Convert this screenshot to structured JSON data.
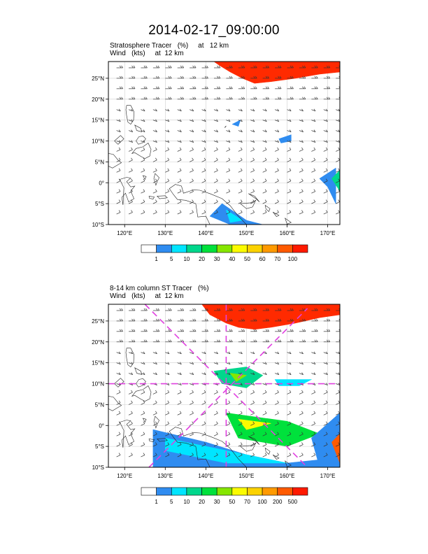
{
  "page": {
    "title": "2014-02-17_09:00:00"
  },
  "chart_data": [
    {
      "type": "heatmap",
      "title_lines": [
        "Stratosphere Tracer   (%)     at   12 km",
        "Wind   (kts)     at  12 km"
      ],
      "xlim": [
        116,
        173
      ],
      "ylim": [
        -10,
        29
      ],
      "x_ticks": [
        120,
        130,
        140,
        150,
        160,
        170
      ],
      "x_tick_labels": [
        "120°E",
        "130°E",
        "140°E",
        "150°E",
        "160°E",
        "170°E"
      ],
      "y_ticks": [
        25,
        20,
        15,
        10,
        5,
        0,
        -5,
        -10
      ],
      "y_tick_labels": [
        "25°N",
        "20°N",
        "15°N",
        "10°N",
        "5°N",
        "0°",
        "5°S",
        "10°S"
      ],
      "colorbar": {
        "labels": [
          "1",
          "5",
          "10",
          "20",
          "30",
          "40",
          "50",
          "60",
          "70",
          "100"
        ],
        "colors": [
          "#ffffff",
          "#2f8cf0",
          "#00e5ff",
          "#00d78c",
          "#00e13c",
          "#86e600",
          "#fbfb00",
          "#fbd200",
          "#ff9a00",
          "#ff5a00",
          "#ff1a00"
        ]
      },
      "regions": [
        {
          "color": "#ff2a00",
          "points": [
            [
              142,
              29
            ],
            [
              173,
              29
            ],
            [
              173,
              26.5
            ],
            [
              168,
              26
            ],
            [
              162,
              25
            ],
            [
              156,
              24.2
            ],
            [
              152,
              23.8
            ],
            [
              149,
              25
            ],
            [
              146,
              26.5
            ],
            [
              143.5,
              28
            ]
          ]
        },
        {
          "color": "#2f8cf0",
          "points": [
            [
              144,
              -5
            ],
            [
              150,
              -9
            ],
            [
              154,
              -10
            ],
            [
              146,
              -10
            ],
            [
              141,
              -8
            ]
          ]
        },
        {
          "color": "#00e5ff",
          "points": [
            [
              145,
              -6.5
            ],
            [
              149,
              -9
            ],
            [
              146,
              -9.5
            ]
          ]
        },
        {
          "color": "#2f8cf0",
          "points": [
            [
              168,
              1
            ],
            [
              172,
              3.5
            ],
            [
              172,
              -5
            ],
            [
              170,
              -1
            ]
          ]
        },
        {
          "color": "#00d78c",
          "points": [
            [
              171,
              1
            ],
            [
              173,
              3
            ],
            [
              173,
              -2
            ]
          ]
        },
        {
          "color": "#2f8cf0",
          "points": [
            [
              158,
              10.5
            ],
            [
              161,
              11.5
            ],
            [
              161,
              10
            ],
            [
              158.5,
              9.5
            ]
          ]
        },
        {
          "color": "#2f8cf0",
          "points": [
            [
              146.5,
              14
            ],
            [
              148.5,
              15
            ],
            [
              148,
              13.5
            ]
          ]
        }
      ],
      "lines": []
    },
    {
      "type": "heatmap",
      "title_lines": [
        "8-14 km column ST Tracer   (%)",
        "Wind   (kts)     at  12 km"
      ],
      "xlim": [
        116,
        173
      ],
      "ylim": [
        -10,
        29
      ],
      "x_ticks": [
        120,
        130,
        140,
        150,
        160,
        170
      ],
      "x_tick_labels": [
        "120°E",
        "130°E",
        "140°E",
        "150°E",
        "160°E",
        "170°E"
      ],
      "y_ticks": [
        25,
        20,
        15,
        10,
        5,
        0,
        -5,
        -10
      ],
      "y_tick_labels": [
        "25°N",
        "20°N",
        "15°N",
        "10°N",
        "5°N",
        "0°",
        "5°S",
        "10°S"
      ],
      "colorbar": {
        "labels": [
          "1",
          "5",
          "10",
          "20",
          "30",
          "50",
          "70",
          "100",
          "200",
          "500"
        ],
        "colors": [
          "#ffffff",
          "#2f8cf0",
          "#00e5ff",
          "#00d78c",
          "#00e13c",
          "#86e600",
          "#fbfb00",
          "#fbd200",
          "#ff9a00",
          "#ff5a00",
          "#ff1a00"
        ]
      },
      "regions": [
        {
          "color": "#ff2a00",
          "points": [
            [
              139,
              29
            ],
            [
              173,
              29
            ],
            [
              173,
              26.5
            ],
            [
              168,
              25.8
            ],
            [
              162,
              24.5
            ],
            [
              156,
              23.5
            ],
            [
              152,
              23
            ],
            [
              148,
              23.5
            ],
            [
              145,
              24.5
            ],
            [
              141,
              26.5
            ]
          ]
        },
        {
          "color": "#2f8cf0",
          "points": [
            [
              127,
              -1
            ],
            [
              140,
              -4
            ],
            [
              150,
              -7
            ],
            [
              160,
              -9
            ],
            [
              170,
              -8
            ],
            [
              173,
              -10
            ],
            [
              127,
              -10
            ]
          ]
        },
        {
          "color": "#00e5ff",
          "points": [
            [
              130,
              -3
            ],
            [
              145,
              -6
            ],
            [
              160,
              -9
            ],
            [
              145,
              -9
            ],
            [
              130,
              -6
            ]
          ]
        },
        {
          "color": "#00e13c",
          "points": [
            [
              145,
              3
            ],
            [
              160,
              1
            ],
            [
              168,
              -2
            ],
            [
              160,
              -5
            ],
            [
              148,
              -3
            ]
          ]
        },
        {
          "color": "#fbfb00",
          "points": [
            [
              148,
              1.5
            ],
            [
              156,
              0.5
            ],
            [
              150,
              -1
            ]
          ]
        },
        {
          "color": "#00d78c",
          "points": [
            [
              142,
              13
            ],
            [
              150,
              14
            ],
            [
              154,
              12
            ],
            [
              150,
              9
            ],
            [
              144,
              10
            ]
          ]
        },
        {
          "color": "#86e600",
          "points": [
            [
              146,
              12.5
            ],
            [
              150,
              12
            ],
            [
              147.5,
              10.5
            ]
          ]
        },
        {
          "color": "#00e5ff",
          "points": [
            [
              157,
              11
            ],
            [
              166,
              11
            ],
            [
              163,
              9.5
            ],
            [
              158,
              9.5
            ]
          ]
        },
        {
          "color": "#2f8cf0",
          "points": [
            [
              166,
              -3
            ],
            [
              173,
              3
            ],
            [
              173,
              -10
            ],
            [
              168,
              -10
            ]
          ]
        },
        {
          "color": "#ff5a00",
          "points": [
            [
              171,
              -4
            ],
            [
              173,
              -2
            ],
            [
              173,
              -9
            ]
          ]
        }
      ],
      "lines": [
        {
          "color": "#e040e0",
          "points": [
            [
              116,
              10
            ],
            [
              173,
              10
            ]
          ]
        },
        {
          "color": "#e040e0",
          "points": [
            [
              145,
              29
            ],
            [
              145,
              -10
            ]
          ]
        },
        {
          "color": "#e040e0",
          "points": [
            [
              125,
              29
            ],
            [
              165,
              -10
            ]
          ]
        },
        {
          "color": "#e040e0",
          "points": [
            [
              126,
              -10
            ],
            [
              165,
              28
            ]
          ]
        }
      ]
    }
  ]
}
